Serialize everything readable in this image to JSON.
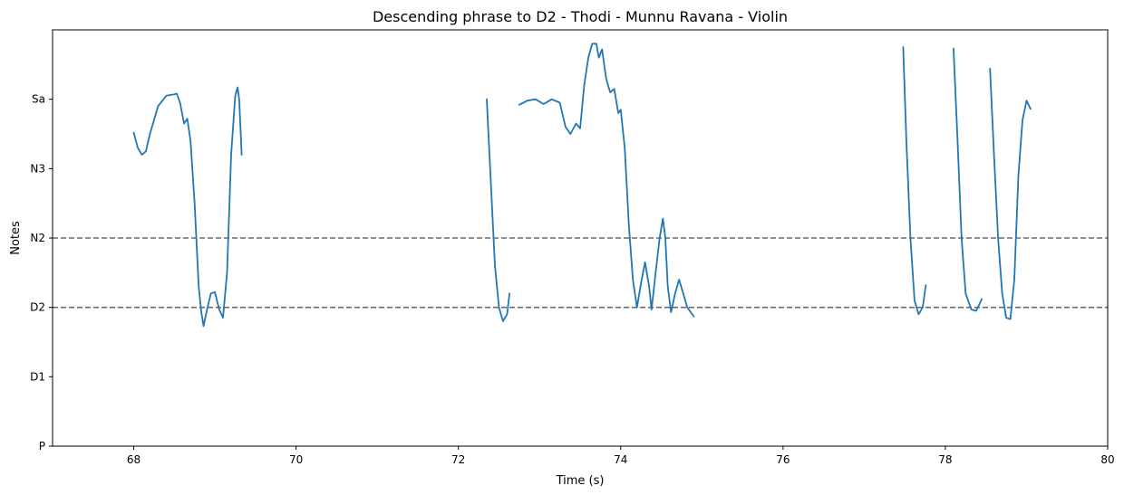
{
  "chart_data": {
    "type": "line",
    "title": "Descending phrase to D2 - Thodi - Munnu Ravana - Violin",
    "xlabel": "Time (s)",
    "ylabel": "Notes",
    "xlim": [
      67.0,
      80.0
    ],
    "ylim": [
      0.0,
      6.0
    ],
    "x_ticks": [
      68,
      70,
      72,
      74,
      76,
      78,
      80
    ],
    "y_ticks": [
      {
        "value": 0,
        "label": "P"
      },
      {
        "value": 1,
        "label": "D1"
      },
      {
        "value": 2,
        "label": "D2"
      },
      {
        "value": 3,
        "label": "N2"
      },
      {
        "value": 4,
        "label": "N3"
      },
      {
        "value": 5,
        "label": "Sa"
      }
    ],
    "reference_lines": [
      {
        "y": 2,
        "note": "D2",
        "style": "dashed"
      },
      {
        "y": 3,
        "note": "N2",
        "style": "dashed"
      }
    ],
    "grid": false,
    "series_color": "#1f77b4",
    "reference_color": "#6b6b6b",
    "segments": [
      [
        [
          68.0,
          4.52
        ],
        [
          68.05,
          4.3
        ],
        [
          68.1,
          4.2
        ],
        [
          68.15,
          4.25
        ],
        [
          68.2,
          4.5
        ],
        [
          68.3,
          4.9
        ],
        [
          68.4,
          5.05
        ],
        [
          68.5,
          5.07
        ],
        [
          68.53,
          5.08
        ],
        [
          68.57,
          4.95
        ],
        [
          68.62,
          4.65
        ],
        [
          68.66,
          4.72
        ],
        [
          68.7,
          4.4
        ],
        [
          68.75,
          3.5
        ],
        [
          68.8,
          2.3
        ],
        [
          68.83,
          1.95
        ],
        [
          68.86,
          1.73
        ],
        [
          68.9,
          1.95
        ],
        [
          68.95,
          2.2
        ],
        [
          69.0,
          2.22
        ],
        [
          69.05,
          1.98
        ],
        [
          69.1,
          1.85
        ],
        [
          69.15,
          2.5
        ],
        [
          69.2,
          4.2
        ],
        [
          69.25,
          5.05
        ],
        [
          69.28,
          5.17
        ],
        [
          69.3,
          5.0
        ],
        [
          69.33,
          4.2
        ]
      ],
      [
        [
          72.35,
          5.0
        ],
        [
          72.4,
          3.8
        ],
        [
          72.45,
          2.6
        ],
        [
          72.5,
          2.0
        ],
        [
          72.55,
          1.8
        ],
        [
          72.6,
          1.9
        ],
        [
          72.63,
          2.2
        ]
      ],
      [
        [
          72.75,
          4.92
        ],
        [
          72.85,
          4.98
        ],
        [
          72.95,
          5.0
        ],
        [
          73.05,
          4.93
        ],
        [
          73.15,
          5.0
        ],
        [
          73.25,
          4.95
        ],
        [
          73.32,
          4.6
        ],
        [
          73.38,
          4.5
        ],
        [
          73.45,
          4.65
        ],
        [
          73.5,
          4.58
        ],
        [
          73.55,
          5.2
        ],
        [
          73.6,
          5.6
        ],
        [
          73.65,
          5.8
        ],
        [
          73.7,
          5.8
        ],
        [
          73.73,
          5.6
        ],
        [
          73.77,
          5.72
        ],
        [
          73.82,
          5.3
        ],
        [
          73.87,
          5.1
        ],
        [
          73.92,
          5.15
        ],
        [
          73.97,
          4.8
        ],
        [
          74.0,
          4.85
        ],
        [
          74.05,
          4.3
        ],
        [
          74.1,
          3.2
        ],
        [
          74.15,
          2.4
        ],
        [
          74.2,
          2.0
        ],
        [
          74.25,
          2.35
        ],
        [
          74.3,
          2.65
        ],
        [
          74.35,
          2.3
        ],
        [
          74.38,
          1.97
        ],
        [
          74.43,
          2.5
        ],
        [
          74.48,
          3.0
        ],
        [
          74.52,
          3.28
        ],
        [
          74.55,
          3.0
        ],
        [
          74.58,
          2.3
        ],
        [
          74.62,
          1.93
        ],
        [
          74.67,
          2.2
        ],
        [
          74.72,
          2.4
        ],
        [
          74.77,
          2.2
        ],
        [
          74.82,
          2.0
        ],
        [
          74.9,
          1.87
        ]
      ],
      [
        [
          77.48,
          5.75
        ],
        [
          77.52,
          4.4
        ],
        [
          77.57,
          3.0
        ],
        [
          77.62,
          2.1
        ],
        [
          77.67,
          1.9
        ],
        [
          77.72,
          2.0
        ],
        [
          77.76,
          2.32
        ]
      ],
      [
        [
          78.1,
          5.73
        ],
        [
          78.15,
          4.4
        ],
        [
          78.2,
          3.0
        ],
        [
          78.25,
          2.2
        ],
        [
          78.32,
          1.97
        ],
        [
          78.38,
          1.95
        ],
        [
          78.45,
          2.12
        ]
      ],
      [
        [
          78.55,
          5.44
        ],
        [
          78.6,
          4.2
        ],
        [
          78.65,
          3.0
        ],
        [
          78.7,
          2.2
        ],
        [
          78.75,
          1.85
        ],
        [
          78.8,
          1.83
        ],
        [
          78.85,
          2.4
        ],
        [
          78.9,
          3.9
        ],
        [
          78.95,
          4.7
        ],
        [
          79.0,
          4.98
        ],
        [
          79.05,
          4.86
        ]
      ]
    ]
  }
}
